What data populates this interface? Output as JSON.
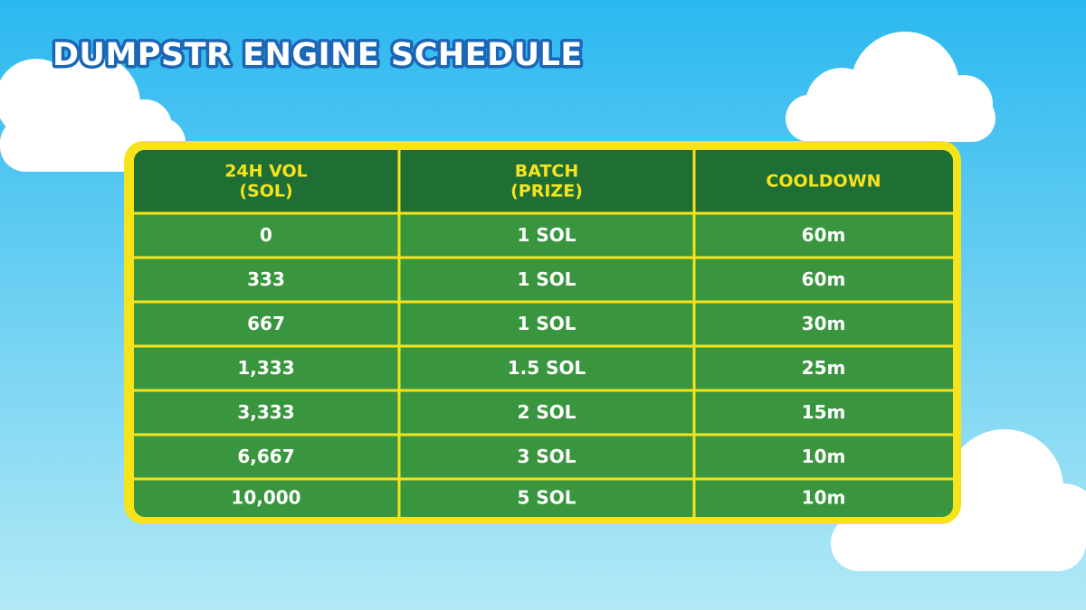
{
  "title": "DUMPSTR ENGINE SCHEDULE",
  "table": {
    "header": [
      [
        "24H VOL",
        "(SOL)"
      ],
      [
        "BATCH",
        "(PRIZE)"
      ],
      [
        "COOLDOWN"
      ]
    ],
    "rows": [
      [
        "0",
        "1 SOL",
        "60m"
      ],
      [
        "333",
        "1 SOL",
        "60m"
      ],
      [
        "667",
        "1 SOL",
        "30m"
      ],
      [
        "1,333",
        "1.5 SOL",
        "25m"
      ],
      [
        "3,333",
        "2 SOL",
        "15m"
      ],
      [
        "6,667",
        "3 SOL",
        "10m"
      ],
      [
        "10,000",
        "5 SOL",
        "10m"
      ]
    ]
  }
}
